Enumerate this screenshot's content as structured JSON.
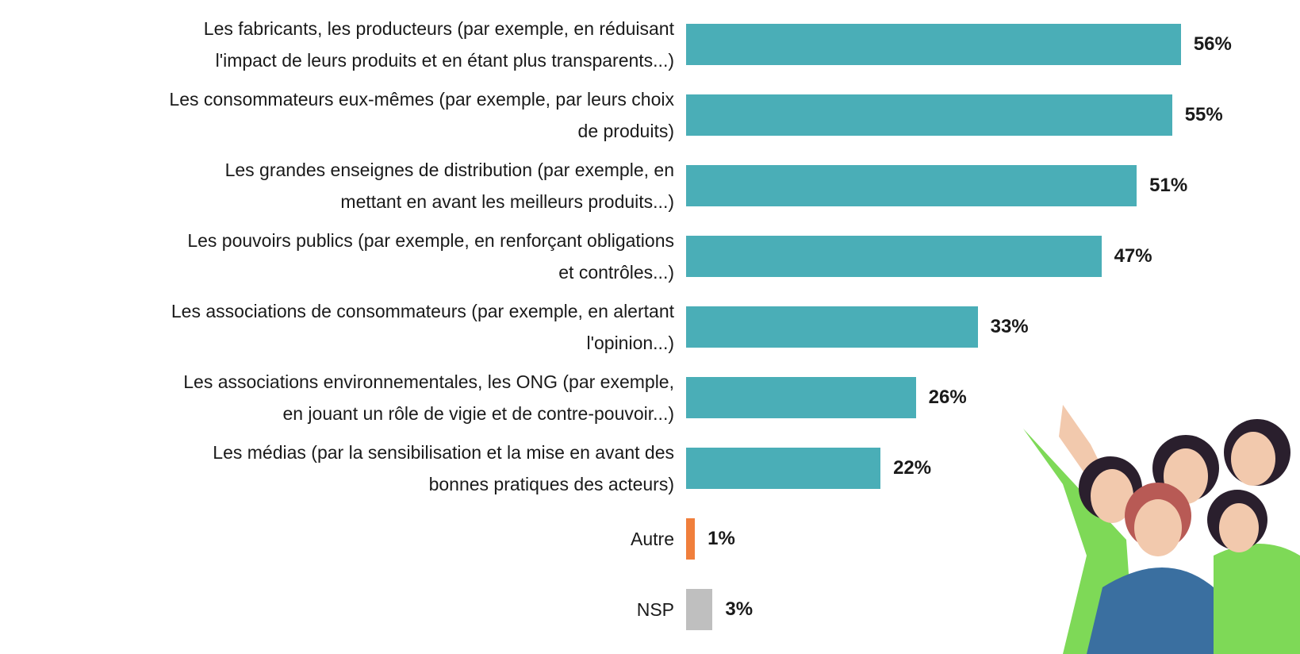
{
  "chart_data": {
    "type": "bar",
    "orientation": "horizontal",
    "categories": [
      "Les fabricants, les producteurs (par exemple, en réduisant\nl'impact de leurs produits et en étant plus transparents...)",
      "Les consommateurs eux-mêmes (par exemple, par leurs choix\nde produits)",
      "Les grandes enseignes de distribution (par exemple, en\nmettant en avant les meilleurs produits...)",
      "Les pouvoirs publics (par exemple, en renforçant obligations\net contrôles...)",
      "Les associations de consommateurs (par exemple, en alertant\nl'opinion...)",
      "Les associations environnementales, les ONG (par exemple,\nen jouant un rôle de vigie et de contre-pouvoir...)",
      "Les médias (par la sensibilisation et la mise en avant des\nbonnes pratiques des acteurs)",
      "Autre",
      "NSP"
    ],
    "values": [
      56,
      55,
      51,
      47,
      33,
      26,
      22,
      1,
      3
    ],
    "value_labels": [
      "56%",
      "55%",
      "51%",
      "47%",
      "33%",
      "26%",
      "22%",
      "1%",
      "3%"
    ],
    "colors": [
      "#4aaeb7",
      "#4aaeb7",
      "#4aaeb7",
      "#4aaeb7",
      "#4aaeb7",
      "#4aaeb7",
      "#4aaeb7",
      "#f07f3c",
      "#bfbfbf"
    ]
  }
}
